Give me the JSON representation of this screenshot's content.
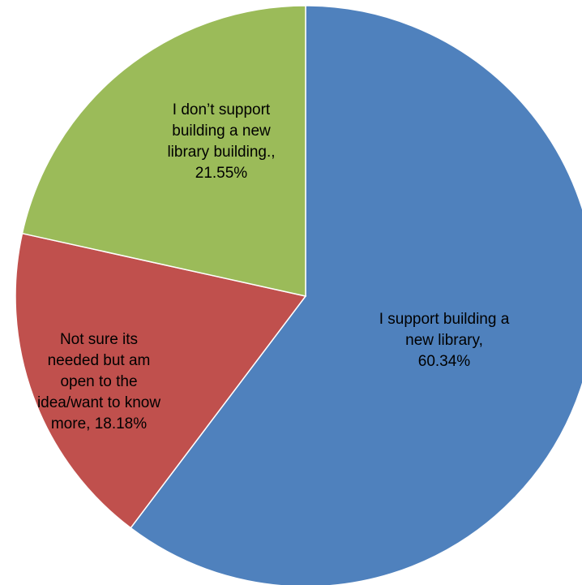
{
  "chart_data": {
    "type": "pie",
    "start_angle_deg": 0,
    "direction": "clockwise",
    "slices": [
      {
        "label_lines": [
          "I support building a",
          "new library,",
          "60.34%"
        ],
        "value": 60.34,
        "color": "#4F81BD"
      },
      {
        "label_lines": [
          "Not sure its",
          "needed but am",
          "open to the",
          "idea/want to know",
          "more, 18.18%"
        ],
        "value": 18.18,
        "color": "#C0504D"
      },
      {
        "label_lines": [
          "I don’t support",
          "building a new",
          "library building.,",
          "21.55%"
        ],
        "value": 21.55,
        "color": "#9BBB59"
      }
    ]
  }
}
